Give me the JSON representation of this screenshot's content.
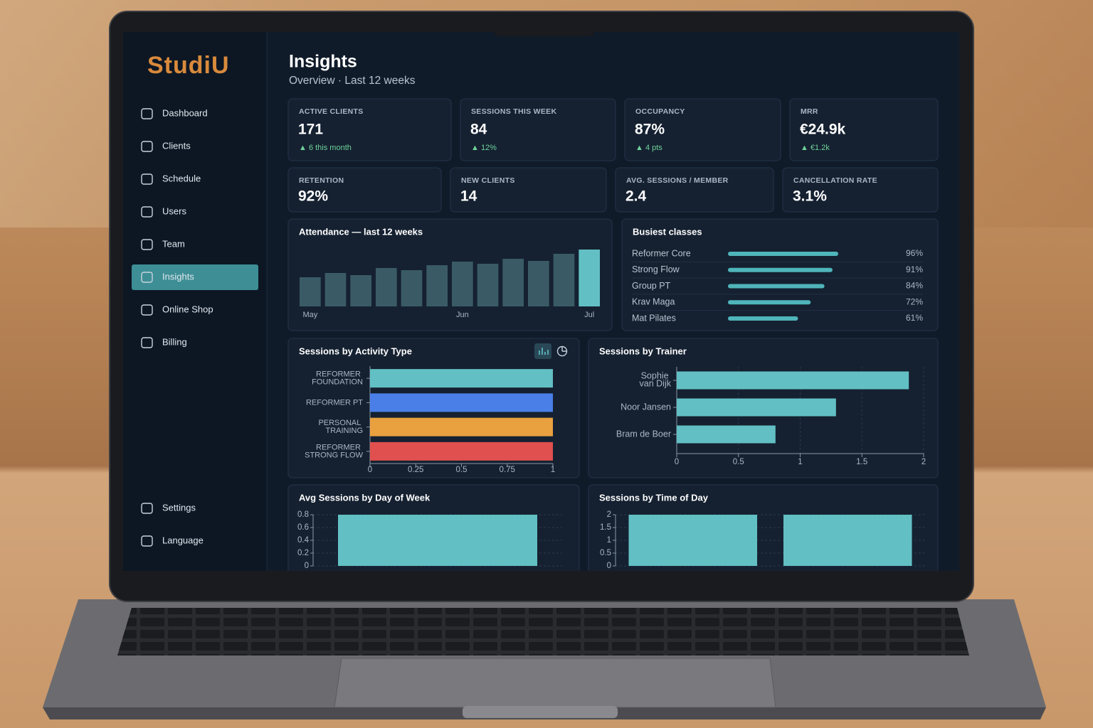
{
  "app": {
    "brand": "StudiU",
    "nav": [
      "Dashboard",
      "Clients",
      "Schedule",
      "Users",
      "Team",
      "Insights",
      "Online Shop",
      "Billing"
    ],
    "active_nav": 5,
    "footer_nav": [
      "Settings",
      "Language"
    ]
  },
  "header": {
    "title": "Insights",
    "subtitle": "Overview · Last 12 weeks"
  },
  "kpis": [
    {
      "label": "ACTIVE CLIENTS",
      "value": "171",
      "delta": "▲ 6 this month"
    },
    {
      "label": "SESSIONS THIS WEEK",
      "value": "84",
      "delta": "▲ 12%"
    },
    {
      "label": "OCCUPANCY",
      "value": "87%",
      "delta": "▲ 4 pts"
    },
    {
      "label": "MRR",
      "value": "€24.9k",
      "delta": "▲ €1.2k"
    },
    {
      "label": "RETENTION",
      "value": "92%"
    },
    {
      "label": "NEW CLIENTS",
      "value": "14"
    },
    {
      "label": "AVG. SESSIONS / MEMBER",
      "value": "2.4"
    },
    {
      "label": "CANCELLATION RATE",
      "value": "3.1%"
    }
  ],
  "chart_data": [
    {
      "type": "column",
      "title": "Attendance — last 12 weeks",
      "categories": [
        "May",
        null,
        null,
        null,
        null,
        null,
        "Jun",
        null,
        null,
        null,
        null,
        "Jul"
      ],
      "values": [
        41,
        47,
        44,
        54,
        51,
        58,
        63,
        60,
        67,
        64,
        74,
        80
      ],
      "color": "#3a5b66",
      "highlight_index": 11,
      "highlight_color": "#62c0c4"
    },
    {
      "type": "progress",
      "title": "Busiest classes",
      "categories": [
        "Reformer Core",
        "Strong Flow",
        "Group PT",
        "Krav Maga",
        "Mat Pilates"
      ],
      "values": [
        96,
        91,
        84,
        72,
        61
      ],
      "value_labels": [
        "96%",
        "91%",
        "84%",
        "72%",
        "61%"
      ],
      "color": "#4fb5ba"
    },
    {
      "type": "hbar",
      "title": "Sessions by Activity Type",
      "categories": [
        "REFORMER FOUNDATION",
        "REFORMER PT",
        "PERSONAL TRAINING",
        "REFORMER STRONG FLOW"
      ],
      "values": [
        1,
        1,
        1,
        1
      ],
      "colors": [
        "#62c0c4",
        "#4a7fe8",
        "#e9a03f",
        "#e0504f"
      ],
      "xlim": [
        0,
        1
      ],
      "xticks": [
        0,
        0.25,
        0.5,
        0.75,
        1
      ],
      "grid": false
    },
    {
      "type": "hbar",
      "title": "Sessions by Trainer",
      "categories": [
        "Sophie van Dijk",
        "Noor Jansen",
        "Bram de Boer"
      ],
      "values": [
        1.88,
        1.29,
        0.8
      ],
      "color": "#62c0c4",
      "xlim": [
        0,
        2
      ],
      "xticks": [
        0,
        0.5,
        1,
        1.5,
        2
      ],
      "grid": true
    },
    {
      "type": "bar",
      "title": "Avg Sessions by Day of Week",
      "categories": [
        null
      ],
      "values": [
        0.8
      ],
      "color": "#62c0c4",
      "ylim": [
        0,
        0.8
      ],
      "yticks": [
        0,
        0.2,
        0.4,
        0.6,
        0.8
      ],
      "grid": true
    },
    {
      "type": "bar",
      "title": "Sessions by Time of Day",
      "categories": [
        null,
        null
      ],
      "values": [
        2,
        2
      ],
      "color": "#62c0c4",
      "ylim": [
        0,
        2
      ],
      "yticks": [
        0,
        0.5,
        1,
        1.5,
        2
      ],
      "grid": true
    }
  ]
}
